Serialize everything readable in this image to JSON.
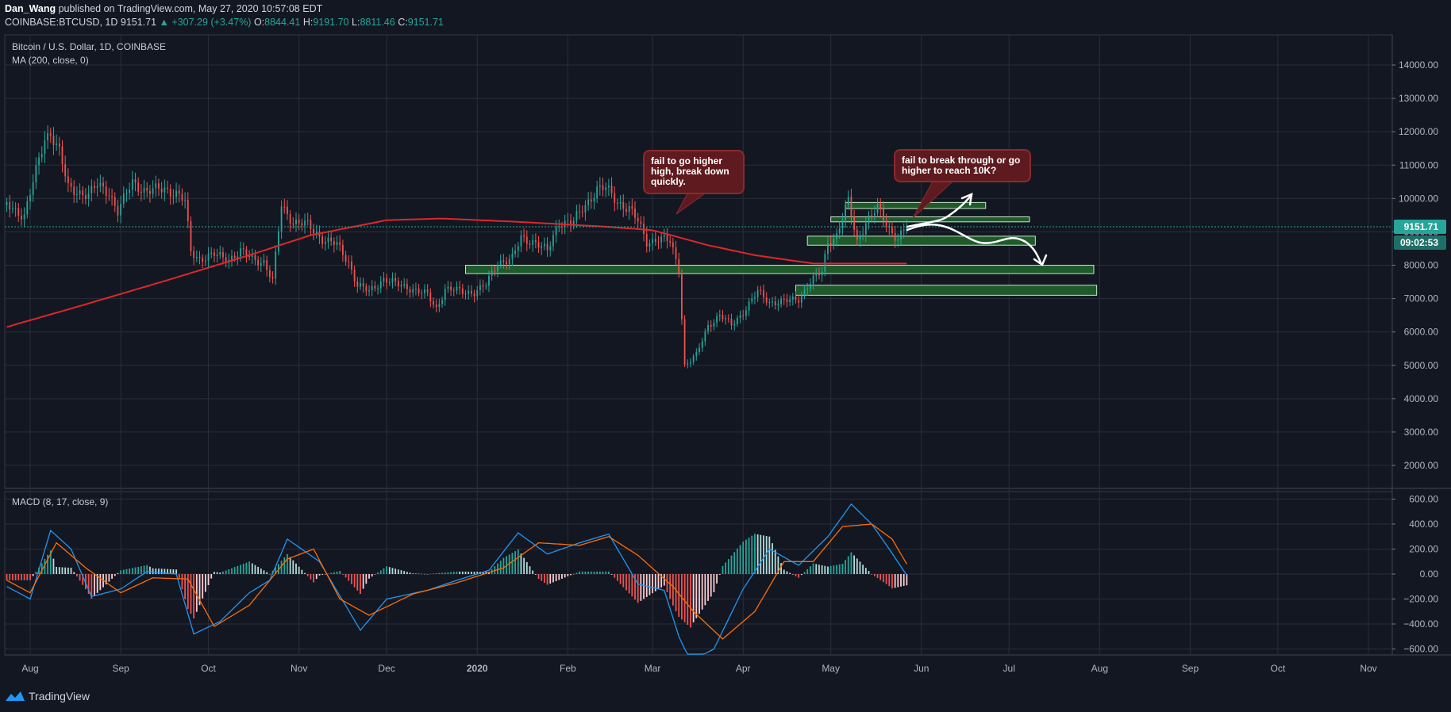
{
  "header": {
    "author": "Dan_Wang",
    "published": "published on TradingView.com, May 27, 2020 10:57:08 EDT",
    "symbol": "COINBASE:BTCUSD, 1D",
    "last": "9151.71",
    "change": "▲ +307.29 (+3.47%)",
    "o_label": "O:",
    "o_value": "8844.41",
    "h_label": "H:",
    "h_value": "9191.70",
    "l_label": "L:",
    "l_value": "8811.46",
    "c_label": "C:",
    "c_value": "9151.71"
  },
  "legend": {
    "title": "Bitcoin / U.S. Dollar, 1D, COINBASE",
    "ma": "MA (200, close, 0)",
    "macd": "MACD (8, 17, close, 9)"
  },
  "price_tag": "9151.71",
  "countdown_tag": "09:02:53",
  "annotations": {
    "callout1": "fail to go higher high, break down quickly.",
    "callout2": "fail to break through or go higher to reach 10K?"
  },
  "footer": {
    "brand": "TradingView"
  },
  "colors": {
    "background": "#131722",
    "grid": "#2a2e39",
    "up": "#26a69a",
    "down": "#ef5350",
    "ma": "#e0262b",
    "macd_line": "#2196f3",
    "signal_line": "#ff6d00",
    "zone_fill": "#1e5a2a",
    "zone_border": "#c8e6c9",
    "callout": "#5e1a1e"
  },
  "chart_data": [
    {
      "type": "candlestick",
      "title": "Bitcoin / U.S. Dollar, 1D, COINBASE",
      "ylim": [
        1000,
        15000
      ],
      "yticks": [
        2000,
        3000,
        4000,
        5000,
        6000,
        7000,
        8000,
        9000,
        10000,
        11000,
        12000,
        13000,
        14000
      ],
      "ytick_labels": [
        "2000.00",
        "3000.00",
        "4000.00",
        "5000.00",
        "6000.00",
        "7000.00",
        "8000.00",
        "9000.00",
        "10000.00",
        "11000.00",
        "12000.00",
        "13000.00",
        "14000.00"
      ],
      "xticks": [
        "Aug",
        "Sep",
        "Oct",
        "Nov",
        "Dec",
        "2020",
        "Feb",
        "Mar",
        "Apr",
        "May",
        "Jun",
        "Jul",
        "Aug",
        "Sep",
        "Oct",
        "Nov"
      ],
      "xtick_dates": [
        "2019-08-01",
        "2019-09-01",
        "2019-10-01",
        "2019-11-01",
        "2019-12-01",
        "2020-01-01",
        "2020-02-01",
        "2020-03-01",
        "2020-04-01",
        "2020-05-01",
        "2020-06-01",
        "2020-07-01",
        "2020-08-01",
        "2020-09-01",
        "2020-10-01",
        "2020-11-01"
      ],
      "close_path": [
        [
          "2019-07-24",
          9800
        ],
        [
          "2019-07-30",
          9500
        ],
        [
          "2019-08-03",
          10800
        ],
        [
          "2019-08-06",
          11800
        ],
        [
          "2019-08-08",
          12000
        ],
        [
          "2019-08-11",
          11400
        ],
        [
          "2019-08-14",
          10300
        ],
        [
          "2019-08-18",
          10200
        ],
        [
          "2019-08-21",
          10100
        ],
        [
          "2019-08-24",
          10400
        ],
        [
          "2019-08-28",
          10200
        ],
        [
          "2019-08-31",
          9600
        ],
        [
          "2019-09-05",
          10500
        ],
        [
          "2019-09-10",
          10200
        ],
        [
          "2019-09-16",
          10300
        ],
        [
          "2019-09-20",
          10150
        ],
        [
          "2019-09-23",
          9900
        ],
        [
          "2019-09-25",
          8400
        ],
        [
          "2019-09-28",
          8200
        ],
        [
          "2019-10-03",
          8300
        ],
        [
          "2019-10-08",
          8200
        ],
        [
          "2019-10-12",
          8400
        ],
        [
          "2019-10-16",
          8200
        ],
        [
          "2019-10-20",
          8100
        ],
        [
          "2019-10-23",
          7500
        ],
        [
          "2019-10-26",
          9800
        ],
        [
          "2019-10-30",
          9300
        ],
        [
          "2019-11-04",
          9200
        ],
        [
          "2019-11-09",
          8800
        ],
        [
          "2019-11-14",
          8600
        ],
        [
          "2019-11-18",
          8100
        ],
        [
          "2019-11-21",
          7400
        ],
        [
          "2019-11-25",
          7200
        ],
        [
          "2019-11-30",
          7600
        ],
        [
          "2019-12-05",
          7400
        ],
        [
          "2019-12-10",
          7300
        ],
        [
          "2019-12-15",
          7100
        ],
        [
          "2019-12-18",
          6700
        ],
        [
          "2019-12-21",
          7300
        ],
        [
          "2019-12-27",
          7200
        ],
        [
          "2019-12-31",
          7200
        ],
        [
          "2020-01-04",
          7400
        ],
        [
          "2020-01-08",
          8100
        ],
        [
          "2020-01-13",
          8200
        ],
        [
          "2020-01-16",
          8800
        ],
        [
          "2020-01-21",
          8700
        ],
        [
          "2020-01-25",
          8400
        ],
        [
          "2020-01-29",
          9300
        ],
        [
          "2020-02-03",
          9300
        ],
        [
          "2020-02-07",
          9800
        ],
        [
          "2020-02-11",
          10300
        ],
        [
          "2020-02-14",
          10300
        ],
        [
          "2020-02-18",
          9900
        ],
        [
          "2020-02-22",
          9700
        ],
        [
          "2020-02-25",
          9300
        ],
        [
          "2020-02-28",
          8700
        ],
        [
          "2020-03-03",
          8800
        ],
        [
          "2020-03-07",
          8700
        ],
        [
          "2020-03-10",
          7900
        ],
        [
          "2020-03-12",
          5000
        ],
        [
          "2020-03-16",
          5300
        ],
        [
          "2020-03-20",
          6200
        ],
        [
          "2020-03-24",
          6500
        ],
        [
          "2020-03-28",
          6200
        ],
        [
          "2020-04-01",
          6600
        ],
        [
          "2020-04-06",
          7200
        ],
        [
          "2020-04-10",
          6900
        ],
        [
          "2020-04-15",
          6900
        ],
        [
          "2020-04-20",
          7000
        ],
        [
          "2020-04-24",
          7500
        ],
        [
          "2020-04-28",
          7800
        ],
        [
          "2020-04-30",
          8700
        ],
        [
          "2020-05-03",
          8900
        ],
        [
          "2020-05-07",
          9900
        ],
        [
          "2020-05-10",
          8700
        ],
        [
          "2020-05-13",
          9300
        ],
        [
          "2020-05-17",
          9700
        ],
        [
          "2020-05-21",
          9100
        ],
        [
          "2020-05-24",
          8800
        ],
        [
          "2020-05-27",
          9151.71
        ]
      ],
      "ma_200_path": [
        [
          "2019-07-24",
          6150
        ],
        [
          "2019-08-15",
          6700
        ],
        [
          "2019-09-15",
          7500
        ],
        [
          "2019-10-15",
          8300
        ],
        [
          "2019-11-05",
          8900
        ],
        [
          "2019-12-01",
          9350
        ],
        [
          "2019-12-20",
          9400
        ],
        [
          "2020-01-15",
          9300
        ],
        [
          "2020-02-15",
          9150
        ],
        [
          "2020-03-01",
          9050
        ],
        [
          "2020-03-20",
          8600
        ],
        [
          "2020-04-05",
          8300
        ],
        [
          "2020-04-25",
          8050
        ],
        [
          "2020-05-10",
          8050
        ],
        [
          "2020-05-27",
          8050
        ]
      ],
      "zones": [
        {
          "from": "2019-12-28",
          "to": "2020-07-30",
          "low": 7750,
          "high": 8000
        },
        {
          "from": "2020-04-19",
          "to": "2020-07-31",
          "low": 7100,
          "high": 7400
        },
        {
          "from": "2020-04-23",
          "to": "2020-07-10",
          "low": 8600,
          "high": 8870
        },
        {
          "from": "2020-05-01",
          "to": "2020-07-08",
          "low": 9300,
          "high": 9450
        },
        {
          "from": "2020-05-06",
          "to": "2020-06-23",
          "low": 9700,
          "high": 9880
        }
      ],
      "last_price": 9151.71
    },
    {
      "type": "line",
      "title": "MACD (8, 17, close, 9)",
      "ylim": [
        -700,
        650
      ],
      "yticks": [
        600,
        400,
        200,
        0,
        -200,
        -400,
        -600
      ],
      "ytick_labels": [
        "600.00",
        "400.00",
        "200.00",
        "0.00",
        "−200.00",
        "−400.00",
        "−600.00"
      ],
      "series": [
        {
          "name": "MACD",
          "points": [
            [
              "2019-07-24",
              -100
            ],
            [
              "2019-08-01",
              -200
            ],
            [
              "2019-08-08",
              350
            ],
            [
              "2019-08-15",
              200
            ],
            [
              "2019-08-22",
              -180
            ],
            [
              "2019-09-01",
              -120
            ],
            [
              "2019-09-10",
              20
            ],
            [
              "2019-09-20",
              0
            ],
            [
              "2019-09-26",
              -480
            ],
            [
              "2019-10-05",
              -380
            ],
            [
              "2019-10-15",
              -150
            ],
            [
              "2019-10-22",
              -50
            ],
            [
              "2019-10-28",
              280
            ],
            [
              "2019-11-08",
              100
            ],
            [
              "2019-11-22",
              -450
            ],
            [
              "2019-12-01",
              -200
            ],
            [
              "2019-12-15",
              -130
            ],
            [
              "2019-12-25",
              -50
            ],
            [
              "2020-01-05",
              30
            ],
            [
              "2020-01-15",
              330
            ],
            [
              "2020-01-25",
              160
            ],
            [
              "2020-02-05",
              250
            ],
            [
              "2020-02-15",
              320
            ],
            [
              "2020-02-25",
              -80
            ],
            [
              "2020-03-05",
              -130
            ],
            [
              "2020-03-10",
              -500
            ],
            [
              "2020-03-14",
              -700
            ],
            [
              "2020-03-22",
              -600
            ],
            [
              "2020-04-01",
              -120
            ],
            [
              "2020-04-10",
              200
            ],
            [
              "2020-04-20",
              70
            ],
            [
              "2020-04-30",
              300
            ],
            [
              "2020-05-08",
              560
            ],
            [
              "2020-05-15",
              400
            ],
            [
              "2020-05-21",
              200
            ],
            [
              "2020-05-27",
              -10
            ]
          ]
        },
        {
          "name": "Signal",
          "points": [
            [
              "2019-07-24",
              -50
            ],
            [
              "2019-08-01",
              -150
            ],
            [
              "2019-08-10",
              250
            ],
            [
              "2019-08-20",
              50
            ],
            [
              "2019-09-01",
              -150
            ],
            [
              "2019-09-12",
              -30
            ],
            [
              "2019-09-24",
              -40
            ],
            [
              "2019-10-03",
              -420
            ],
            [
              "2019-10-15",
              -250
            ],
            [
              "2019-10-28",
              120
            ],
            [
              "2019-11-06",
              200
            ],
            [
              "2019-11-15",
              -200
            ],
            [
              "2019-11-25",
              -330
            ],
            [
              "2019-12-10",
              -160
            ],
            [
              "2019-12-25",
              -70
            ],
            [
              "2020-01-10",
              50
            ],
            [
              "2020-01-22",
              250
            ],
            [
              "2020-02-05",
              230
            ],
            [
              "2020-02-15",
              300
            ],
            [
              "2020-02-25",
              150
            ],
            [
              "2020-03-08",
              -100
            ],
            [
              "2020-03-15",
              -300
            ],
            [
              "2020-03-25",
              -520
            ],
            [
              "2020-04-05",
              -300
            ],
            [
              "2020-04-15",
              100
            ],
            [
              "2020-04-25",
              100
            ],
            [
              "2020-05-05",
              380
            ],
            [
              "2020-05-15",
              400
            ],
            [
              "2020-05-22",
              280
            ],
            [
              "2020-05-27",
              80
            ]
          ]
        }
      ]
    }
  ]
}
